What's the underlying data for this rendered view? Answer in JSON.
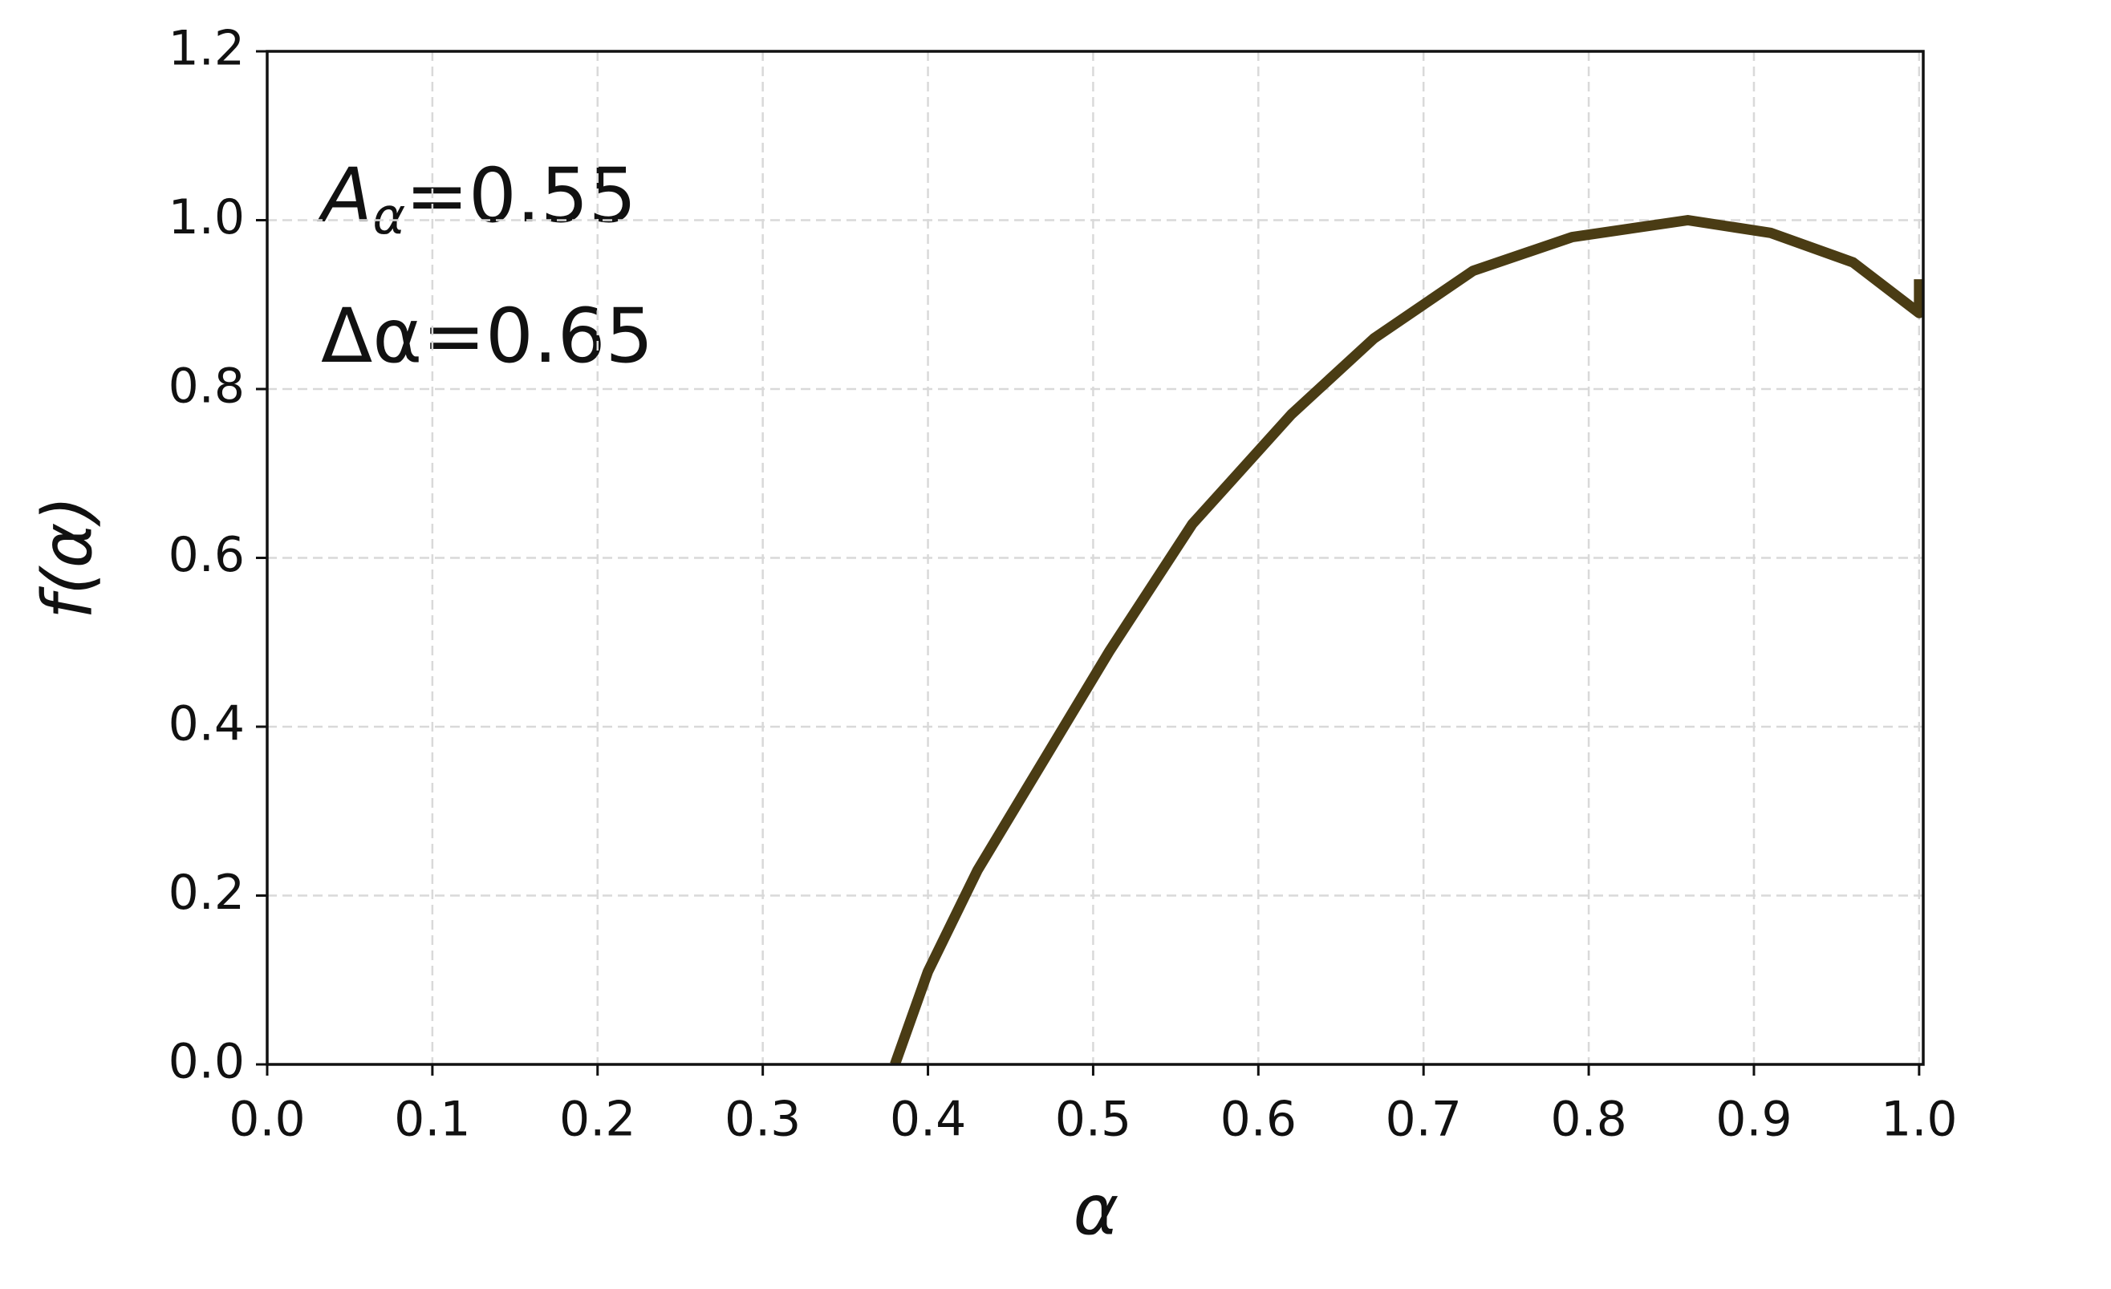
{
  "chart_data": {
    "type": "line",
    "xlabel": "α",
    "ylabel": "f(α)",
    "annotations": [
      [
        "A",
        "α",
        "=0.55"
      ],
      [
        "Δα=0.65"
      ]
    ],
    "x": [
      0.38,
      0.4,
      0.43,
      0.47,
      0.51,
      0.56,
      0.62,
      0.67,
      0.73,
      0.79,
      0.86,
      0.91,
      0.96,
      1.0,
      1.0
    ],
    "values": [
      0.0,
      0.11,
      0.23,
      0.36,
      0.49,
      0.64,
      0.77,
      0.86,
      0.94,
      0.98,
      1.0,
      0.985,
      0.95,
      0.89,
      0.93
    ],
    "color": "#4a3c14",
    "xlim": [
      0,
      1.0025
    ],
    "ylim": [
      0,
      1.2
    ],
    "xticks": [
      {
        "value": 0,
        "label": "0.0"
      },
      0.1,
      0.2,
      0.3,
      0.4,
      0.5,
      0.6,
      0.7,
      0.8,
      0.9,
      {
        "value": 1,
        "label": "1.0"
      }
    ],
    "yticks": [
      {
        "value": 0,
        "label": "0.0"
      },
      0.2,
      0.4,
      0.6,
      0.8,
      {
        "value": 1,
        "label": "1.0"
      },
      1.2
    ],
    "grid": true
  }
}
